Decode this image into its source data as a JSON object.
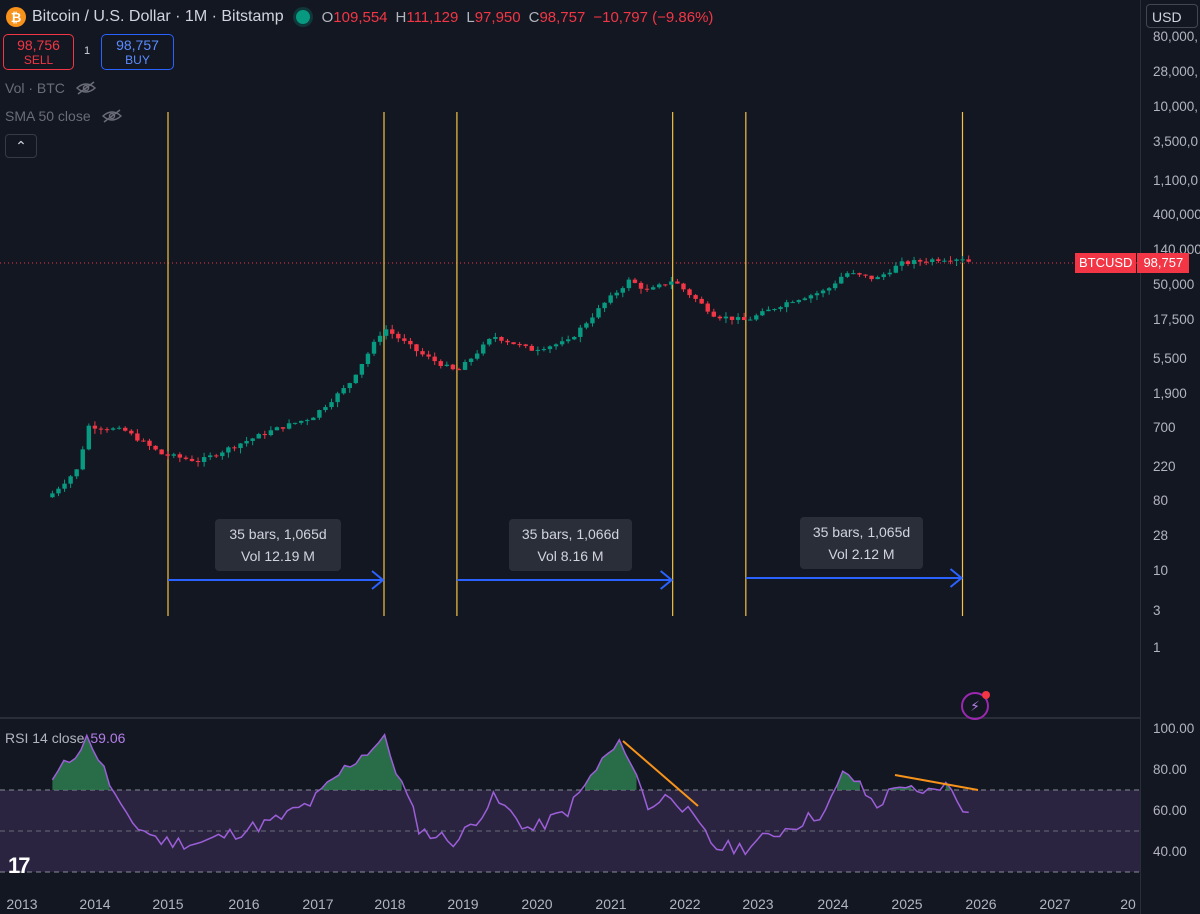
{
  "header": {
    "symbol": "Bitcoin / U.S. Dollar · 1M · Bitstamp",
    "open_label": "O",
    "open": "109,554",
    "high_label": "H",
    "high": "111,129",
    "low_label": "L",
    "low": "97,950",
    "close_label": "C",
    "close": "98,757",
    "change": "−10,797 (−9.86%)"
  },
  "trade": {
    "sell_price": "98,756",
    "sell_label": "SELL",
    "spread": "1",
    "buy_price": "98,757",
    "buy_label": "BUY"
  },
  "indicators": {
    "volume": "Vol · BTC",
    "sma": "SMA 50 close"
  },
  "currency": "USD",
  "price_ticks": [
    "80,000,",
    "28,000,",
    "10,000,",
    "3,500,0",
    "1,100,0",
    "400,000",
    "140,000",
    "50,000",
    "17,500",
    "5,500",
    "1,900",
    "700",
    "220",
    "80",
    "28",
    "10",
    "3",
    "1"
  ],
  "price_tag": {
    "symbol": "BTCUSD",
    "price": "98,757"
  },
  "measurements": [
    {
      "line1": "35 bars, 1,065d",
      "line2": "Vol 12.19 M"
    },
    {
      "line1": "35 bars, 1,066d",
      "line2": "Vol 8.16 M"
    },
    {
      "line1": "35 bars, 1,065d",
      "line2": "Vol 2.12 M"
    }
  ],
  "rsi": {
    "label": "RSI 14 close",
    "value": "59.06",
    "ticks": [
      "100.00",
      "80.00",
      "60.00",
      "40.00"
    ]
  },
  "years": [
    "2013",
    "2014",
    "2015",
    "2016",
    "2017",
    "2018",
    "2019",
    "2020",
    "2021",
    "2022",
    "2023",
    "2024",
    "2025",
    "2026",
    "2027",
    "20"
  ],
  "colors": {
    "background": "#131722",
    "up": "#089981",
    "down": "#f23645",
    "cycle_line": "#f5c242",
    "arrow": "#2962ff",
    "rsi_line": "#9c5fd9",
    "rsi_band": "#2b2440",
    "trendline": "#f7931a"
  },
  "chart_data": {
    "type": "candlestick",
    "scale": "log",
    "interval": "1M",
    "x": [
      "2013-06",
      "2013-10",
      "2013-12",
      "2014-06",
      "2014-12",
      "2015-06",
      "2015-12",
      "2016-06",
      "2016-12",
      "2017-06",
      "2017-12",
      "2018-06",
      "2018-12",
      "2019-06",
      "2019-12",
      "2020-06",
      "2020-12",
      "2021-04",
      "2021-07",
      "2021-11",
      "2022-06",
      "2022-11",
      "2023-06",
      "2023-12",
      "2024-03",
      "2024-08",
      "2024-12",
      "2025-06",
      "2025-10",
      "2025-11"
    ],
    "close": [
      100,
      200,
      750,
      640,
      320,
      260,
      430,
      670,
      960,
      2500,
      13800,
      6400,
      3700,
      10800,
      7200,
      9100,
      29000,
      57000,
      41000,
      57000,
      19800,
      17100,
      30500,
      42300,
      71000,
      59000,
      93400,
      107000,
      110000,
      98757
    ],
    "rsi": {
      "ylim": [
        30,
        100
      ],
      "band": [
        30,
        70
      ],
      "x": [
        "2013-06",
        "2013-12",
        "2014-06",
        "2014-12",
        "2015-06",
        "2016-06",
        "2016-12",
        "2017-06",
        "2017-12",
        "2018-06",
        "2018-12",
        "2019-06",
        "2019-12",
        "2020-06",
        "2020-12",
        "2021-03",
        "2021-07",
        "2021-11",
        "2022-06",
        "2022-11",
        "2023-06",
        "2023-12",
        "2024-03",
        "2024-08",
        "2024-12",
        "2025-03",
        "2025-07",
        "2025-11"
      ],
      "values": [
        75,
        96,
        56,
        45,
        44,
        55,
        64,
        82,
        95,
        50,
        45,
        66,
        50,
        60,
        86,
        93,
        62,
        68,
        42,
        42,
        52,
        60,
        80,
        62,
        74,
        66,
        73,
        59.06
      ]
    },
    "cycle_markers": [
      "2015-01",
      "2017-12",
      "2018-12",
      "2021-11",
      "2022-11",
      "2025-10"
    ]
  }
}
